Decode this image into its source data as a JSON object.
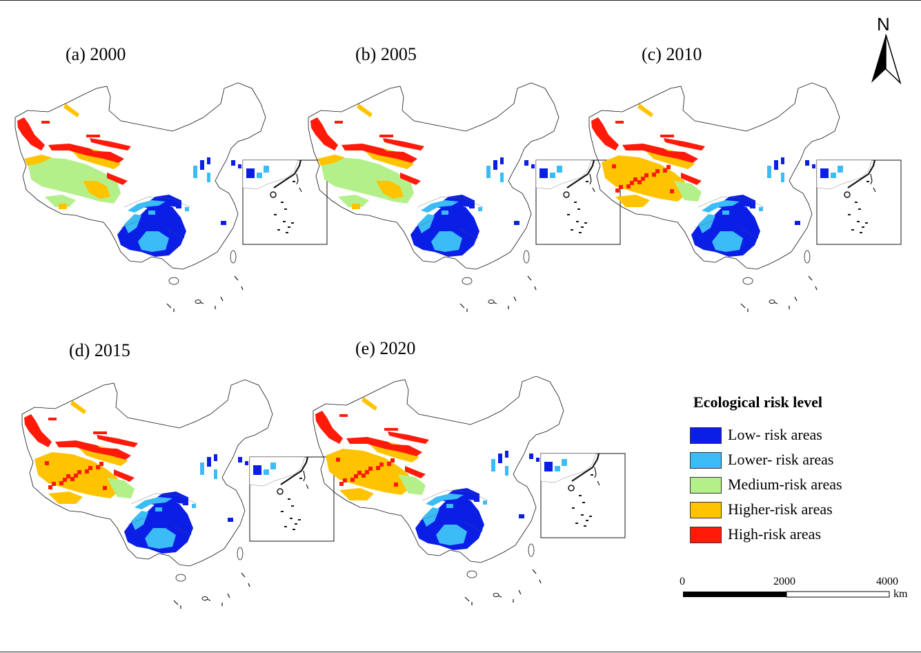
{
  "panels": [
    {
      "id": "a",
      "label": "(a) 2000"
    },
    {
      "id": "b",
      "label": "(b) 2005"
    },
    {
      "id": "c",
      "label": "(c) 2010"
    },
    {
      "id": "d",
      "label": "(d) 2015"
    },
    {
      "id": "e",
      "label": "(e) 2020"
    }
  ],
  "legend": {
    "title": "Ecological risk level",
    "items": [
      {
        "label": "Low- risk areas",
        "color": "#0a1ee6"
      },
      {
        "label": "Lower- risk areas",
        "color": "#3bbcf6"
      },
      {
        "label": "Medium-risk areas",
        "color": "#b4f08a"
      },
      {
        "label": "Higher-risk areas",
        "color": "#ffc300"
      },
      {
        "label": "High-risk areas",
        "color": "#ff1a0a"
      }
    ]
  },
  "scale_bar": {
    "ticks": [
      "0",
      "2000",
      "4000"
    ],
    "unit": "km"
  },
  "north_arrow": {
    "label": "N"
  }
}
